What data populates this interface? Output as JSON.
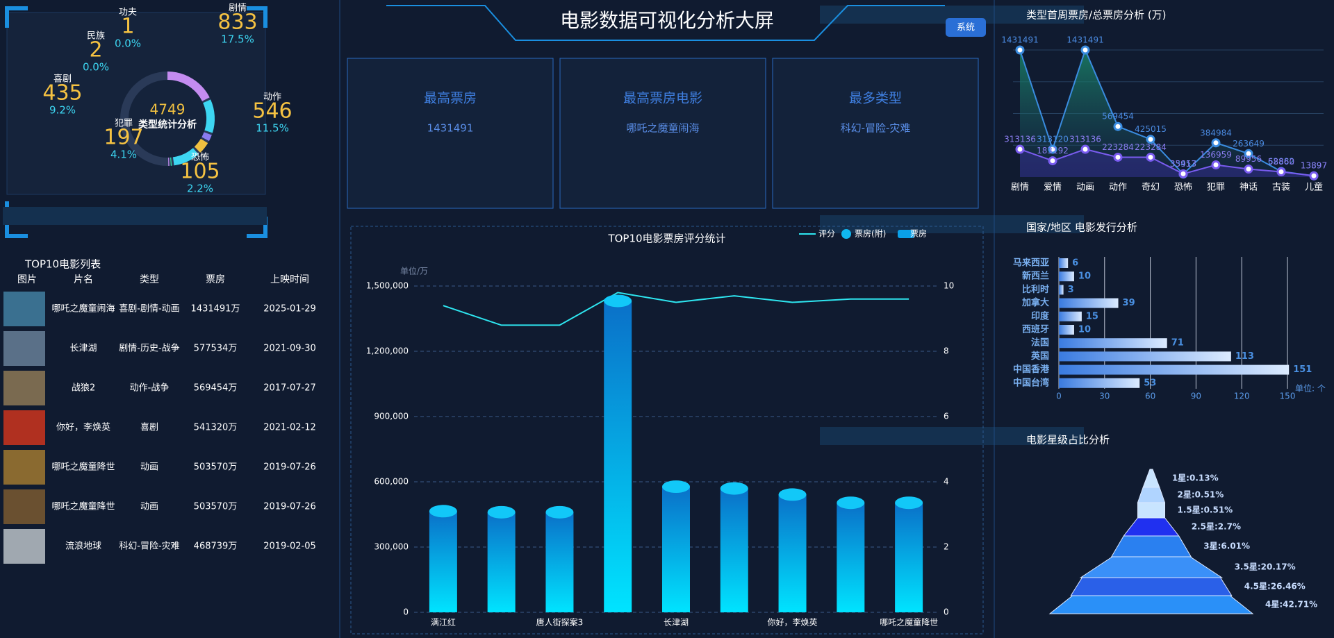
{
  "header": {
    "title": "电影数据可视化分析大屏",
    "button": "系统"
  },
  "cards": [
    {
      "title": "最高票房",
      "value": "1431491"
    },
    {
      "title": "最高票房电影",
      "value": "哪吒之魔童闹海"
    },
    {
      "title": "最多类型",
      "value": "科幻-冒险-灾难"
    }
  ],
  "table": {
    "title": "TOP10电影列表",
    "columns": [
      "图片",
      "片名",
      "类型",
      "票房",
      "上映时间"
    ],
    "rows": [
      [
        "哪吒之魔童闹海",
        "喜剧-剧情-动画",
        "1431491万",
        "2025-01-29"
      ],
      [
        "长津湖",
        "剧情-历史-战争",
        "577534万",
        "2021-09-30"
      ],
      [
        "战狼2",
        "动作-战争",
        "569454万",
        "2017-07-27"
      ],
      [
        "你好，李焕英",
        "喜剧",
        "541320万",
        "2021-02-12"
      ],
      [
        "哪吒之魔童降世",
        "动画",
        "503570万",
        "2019-07-26"
      ],
      [
        "哪吒之魔童降世",
        "动画",
        "503570万",
        "2019-07-26"
      ],
      [
        "流浪地球",
        "科幻-冒险-灾难",
        "468739万",
        "2019-02-05"
      ]
    ]
  },
  "chart_data": [
    {
      "type": "pie",
      "title": "类型统计分析",
      "total": 4749,
      "categories": [
        "剧情",
        "动作",
        "恐怖",
        "犯罪",
        "喜剧",
        "民族",
        "功夫"
      ],
      "values": [
        833,
        546,
        105,
        197,
        435,
        2,
        1
      ],
      "shares": [
        {
          "value": 17.5,
          "label": "17.5%"
        },
        {
          "value": 11.5,
          "label": "11.5%"
        },
        {
          "value": 2.2,
          "label": "2.2%"
        },
        {
          "value": 4.1,
          "label": "4.1%"
        },
        {
          "value": 9.2,
          "label": "9.2%"
        },
        {
          "value": 0,
          "label": "0.0%"
        },
        {
          "value": 0,
          "label": "0.0%"
        }
      ],
      "colors": [
        "#c48cf0",
        "#3dd6f2",
        "#8a7cf0",
        "#f0c040",
        "#3dd6f2",
        "#2fe0a0",
        "#c48cf0"
      ]
    },
    {
      "type": "bar",
      "title": "TOP10电影票房评分统计",
      "ylabel": "单位/万",
      "categories": [
        "满江红",
        null,
        "唐人街探案3",
        null,
        "长津湖",
        null,
        "你好，李焕英",
        null,
        "哪吒之魔童降世"
      ],
      "series": [
        {
          "name": "评分",
          "color": "#2ee6f0",
          "axis": "y2",
          "values": [
            9.4,
            8.8,
            8.8,
            9.8,
            9.5,
            9.7,
            9.5,
            9.6,
            9.6
          ]
        },
        {
          "name": "票房(附)",
          "color": "#10b8f0",
          "values": [
            465000,
            460000,
            460000,
            1431491,
            577534,
            569454,
            541320,
            503570,
            503570
          ]
        },
        {
          "name": "票房",
          "color": "#0aa0e8",
          "values": [
            465000,
            460000,
            460000,
            1431491,
            577534,
            569454,
            541320,
            503570,
            503570
          ]
        }
      ],
      "ylim": [
        0,
        1500000
      ],
      "yticks": [
        0,
        {
          "value": 300000,
          "label": "300,000"
        },
        {
          "value": 600000,
          "label": "600,000"
        },
        {
          "value": 900000,
          "label": "900,000"
        },
        {
          "value": 1200000,
          "label": "1,200,000"
        },
        {
          "value": 1500000,
          "label": "1,500,000"
        }
      ],
      "y2lim": [
        0,
        10
      ],
      "y2ticks": [
        0,
        2,
        4,
        6,
        8,
        10
      ],
      "grid": true
    },
    {
      "type": "line",
      "title": "类型首周票房/总票房分析 (万)",
      "categories": [
        "剧情",
        "爱情",
        "动画",
        "动作",
        "奇幻",
        "恐怖",
        "犯罪",
        "神话",
        "古装",
        "儿童"
      ],
      "series": [
        {
          "color": "#3a8ce0",
          "values": [
            1431491,
            313120,
            1431491,
            569454,
            425015,
            33457,
            384984,
            263649,
            62882,
            13897
          ]
        },
        {
          "color": "#7a5cf0",
          "values": [
            313136,
            183192,
            313136,
            223284,
            223284,
            35913,
            136959,
            89956,
            58860,
            13897
          ]
        }
      ]
    },
    {
      "type": "barh",
      "title": "国家/地区 电影发行分析",
      "xlabel": "单位: 个",
      "categories": [
        "马来西亚",
        "新西兰",
        "比利时",
        "加拿大",
        "印度",
        "西班牙",
        "法国",
        "英国",
        "中国香港",
        "中国台湾"
      ],
      "values": [
        6,
        10,
        3,
        39,
        15,
        10,
        71,
        113,
        151,
        53
      ],
      "xlim": [
        0,
        150
      ],
      "xticks": [
        0,
        30,
        60,
        90,
        120,
        150
      ],
      "grid": true
    },
    {
      "type": "funnel",
      "title": "电影星级占比分析",
      "values": [
        0.13,
        0.51,
        0.51,
        2.7,
        6.01,
        20.17,
        26.46,
        42.71
      ],
      "value_labels": [
        "1星:0.13%",
        "2星:0.51%",
        "1.5星:0.51%",
        "2.5星:2.7%",
        "3星:6.01%",
        "3.5星:20.17%",
        "4.5星:26.46%",
        "4星:42.71%"
      ],
      "colors": [
        "#c8e4ff",
        "#b0d4ff",
        "#c8e4ff",
        "#2030f0",
        "#2a80f0",
        "#3a90f8",
        "#2a60e8",
        "#2a90f8"
      ]
    }
  ]
}
